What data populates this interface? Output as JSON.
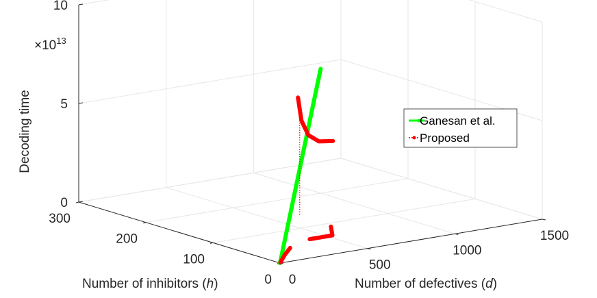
{
  "chart_data": {
    "type": "line",
    "projection": "3d",
    "xlabel_text": "Number of defectives (",
    "xlabel_var": "d",
    "xlabel_close": ")",
    "ylabel_text": "Number of inhibitors (",
    "ylabel_var": "h",
    "ylabel_close": ")",
    "zlabel": "Decoding time",
    "z_exponent_prefix": "×10",
    "z_exponent": "13",
    "xlim": [
      0,
      1500
    ],
    "ylim": [
      0,
      300
    ],
    "zlim": [
      0,
      10
    ],
    "x_ticks": [
      "0",
      "500",
      "1000",
      "1500"
    ],
    "y_ticks": [
      "0",
      "100",
      "200",
      "300"
    ],
    "z_ticks": [
      "0",
      "5",
      "10"
    ],
    "legend_position": "right",
    "series": [
      {
        "name": "Ganesan et al.",
        "color": "#00ff00",
        "style": "solid-thick",
        "points": [
          {
            "d": 0,
            "h": 0,
            "t": 0.0
          },
          {
            "d": 1000,
            "h": 200,
            "t": 6.3
          }
        ]
      },
      {
        "name": "Proposed",
        "color": "#ff0000",
        "style": "dotted-with-markers",
        "segments": [
          [
            {
              "d": 10,
              "h": 2,
              "t": 0.0
            },
            {
              "d": 120,
              "h": 24,
              "t": 0.0
            },
            {
              "d": 150,
              "h": 24,
              "t": 0.3
            }
          ],
          [
            {
              "d": 400,
              "h": 60,
              "t": 0.0
            },
            {
              "d": 530,
              "h": 60,
              "t": 0.0
            },
            {
              "d": 560,
              "h": 70,
              "t": 0.3
            }
          ],
          [
            {
              "d": 640,
              "h": 140,
              "t": 6.0
            },
            {
              "d": 660,
              "h": 140,
              "t": 4.8
            },
            {
              "d": 700,
              "h": 140,
              "t": 4.0
            },
            {
              "d": 760,
              "h": 140,
              "t": 3.6
            },
            {
              "d": 840,
              "h": 140,
              "t": 3.5
            }
          ]
        ],
        "connector": [
          {
            "d": 650,
            "h": 140,
            "t": 5.2
          },
          {
            "d": 650,
            "h": 140,
            "t": 0.0
          }
        ]
      }
    ]
  }
}
